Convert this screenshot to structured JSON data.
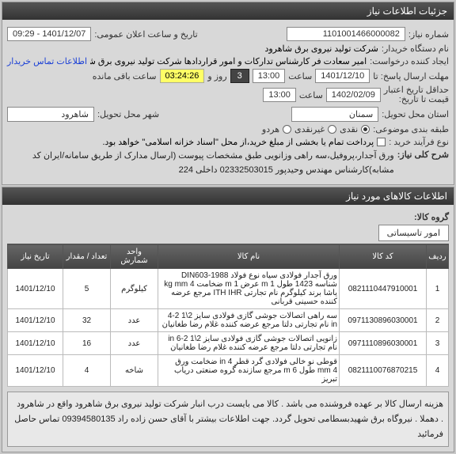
{
  "header": {
    "title": "جزئیات اطلاعات نیاز"
  },
  "info": {
    "reqNumLabel": "شماره نیاز:",
    "reqNum": "1101001466000082",
    "announceLabel": "تاریخ و ساعت اعلان عمومی:",
    "announceDate": "1401/12/07 - 09:29",
    "buyerLabel": "نام دستگاه خریدار:",
    "buyer": "شرکت تولید نیروی برق شاهرود",
    "requesterLabel": "ایجاد کننده درخواست:",
    "requester": "امیر سعادت فر کارشناس تدارکات و امور قراردادها شرکت تولید نیروی برق شاهر",
    "buyerInfoBtn": "اطلاعات تماس خریدار",
    "deadlineLabel": "مهلت ارسال پاسخ: تا",
    "deadlineTimeLabel": "ساعت",
    "deadlineDate": "1401/12/10",
    "deadlineTime": "13:00",
    "daysLabel": "روز و",
    "days": "3",
    "timer": "03:24:26",
    "remainLabel": "ساعت باقی مانده",
    "validityLabel": "حداقل تاریخ اعتبار",
    "validityLabel2": "قیمت تا تاریخ:",
    "validityDate": "1402/02/09",
    "validityTimeLabel": "ساعت",
    "validityTime": "13:00",
    "provinceLabel": "استان محل تحویل:",
    "province": "سمنان",
    "cityLabel": "شهر محل تحویل:",
    "city": "شاهرود",
    "payTopicLabel": "طبقه بندی موضوعی:",
    "cashLabel": "نقدی",
    "nonCashLabel": "غیرنقدی",
    "bothLabel": "هردو",
    "purchaseTypeLabel": "نوع فرآیند خرید :",
    "treasuryNote": "پرداخت تمام یا بخشی از مبلغ خرید،از محل \"اسناد خزانه اسلامی\" خواهد بود.",
    "descLabel": "شرح کلی نیاز:",
    "desc": "ورق آجدار،پروفیل،سه راهی وزانویی طبق مشخصات پیوست (ارسال مدارک از طریق سامانه/ایران کد مشابه)کارشناس مهندس وحیدپور 02332503015 داخلی 224"
  },
  "items": {
    "title": "اطلاعات کالاهای مورد نیاز",
    "groupLabel": "گروه کالا:",
    "tabLabel": "امور تاسیساتی",
    "cols": [
      "ردیف",
      "کد کالا",
      "نام کالا",
      "واحد شمارش",
      "تعداد / مقدار",
      "تاریخ نیاز"
    ],
    "rows": [
      [
        "1",
        "0821110447910001",
        "ورق آجدار فولادی سیاه نوع فولاد 1988-DIN603 شناسه 1423 طول m 1 عرض m 1 ضخامت kg mm 4 یاشا برند کیلوگرم نام تجارتی ITH IHR مرجع عرضه کننده حسینی قربانی",
        "کیلوگرم",
        "5",
        "1401/12/10"
      ],
      [
        "2",
        "0971130896030001",
        "سه راهی اتصالات جوشی گازی فولادی سایز 2\\1 2-4 in نام تجارتی دلتا مرجع عرضه کننده غلام رضا طغانیان",
        "عدد",
        "32",
        "1401/12/10"
      ],
      [
        "3",
        "0971110896030001",
        "زانویی اتصالات جوشی گازی فولادی سایز 2\\1 2-6 in نام تجارتی دلتا مرجع عرضه کننده غلام رضا طغانیان",
        "عدد",
        "16",
        "1401/12/10"
      ],
      [
        "4",
        "0821110076870215",
        "قوطی نو خالی فولادی گرد قطر in 4 ضخامت ورق mm 4 طول m 6 مرجع سازنده گروه صنعتی دریاب تبریز",
        "شاخه",
        "4",
        "1401/12/10"
      ]
    ],
    "note": "هزینه ارسال کالا بر عهده فروشنده می باشد . کالا می بایست درب انبار شرکت تولید نیروی برق شاهرود واقع در شاهرود . دهملا . نیروگاه برق شهیدبسطامی تحویل گردد. جهت اطلاعات بیشتر با آقای حسن زاده راد 09394580135 تماس حاصل فرمائید"
  }
}
